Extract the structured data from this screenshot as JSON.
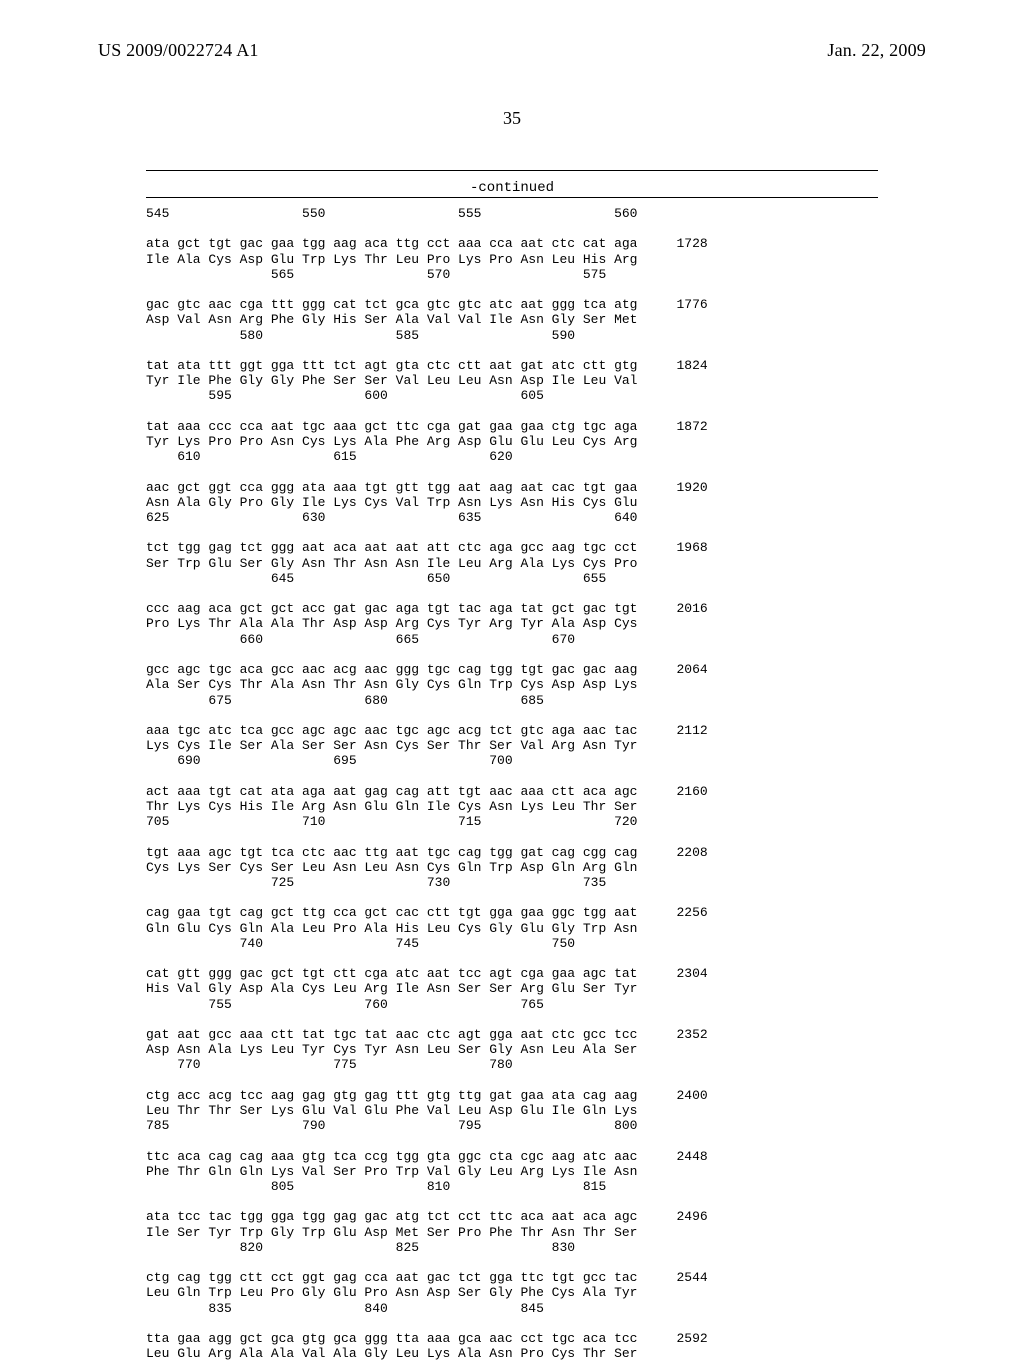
{
  "header": {
    "left": "US 2009/0022724 A1",
    "right": "Jan. 22, 2009"
  },
  "page_number": "35",
  "continued_label": "-continued",
  "sequence_text": "545                 550                 555                 560\n\nata gct tgt gac gaa tgg aag aca ttg cct aaa cca aat ctc cat aga     1728\nIle Ala Cys Asp Glu Trp Lys Thr Leu Pro Lys Pro Asn Leu His Arg\n                565                 570                 575\n\ngac gtc aac cga ttt ggg cat tct gca gtc gtc atc aat ggg tca atg     1776\nAsp Val Asn Arg Phe Gly His Ser Ala Val Val Ile Asn Gly Ser Met\n            580                 585                 590\n\ntat ata ttt ggt gga ttt tct agt gta ctc ctt aat gat atc ctt gtg     1824\nTyr Ile Phe Gly Gly Phe Ser Ser Val Leu Leu Asn Asp Ile Leu Val\n        595                 600                 605\n\ntat aaa ccc cca aat tgc aaa gct ttc cga gat gaa gaa ctg tgc aga     1872\nTyr Lys Pro Pro Asn Cys Lys Ala Phe Arg Asp Glu Glu Leu Cys Arg\n    610                 615                 620\n\naac gct ggt cca ggg ata aaa tgt gtt tgg aat aag aat cac tgt gaa     1920\nAsn Ala Gly Pro Gly Ile Lys Cys Val Trp Asn Lys Asn His Cys Glu\n625                 630                 635                 640\n\ntct tgg gag tct ggg aat aca aat aat att ctc aga gcc aag tgc cct     1968\nSer Trp Glu Ser Gly Asn Thr Asn Asn Ile Leu Arg Ala Lys Cys Pro\n                645                 650                 655\n\nccc aag aca gct gct acc gat gac aga tgt tac aga tat gct gac tgt     2016\nPro Lys Thr Ala Ala Thr Asp Asp Arg Cys Tyr Arg Tyr Ala Asp Cys\n            660                 665                 670\n\ngcc agc tgc aca gcc aac acg aac ggg tgc cag tgg tgt gac gac aag     2064\nAla Ser Cys Thr Ala Asn Thr Asn Gly Cys Gln Trp Cys Asp Asp Lys\n        675                 680                 685\n\naaa tgc atc tca gcc agc agc aac tgc agc acg tct gtc aga aac tac     2112\nLys Cys Ile Ser Ala Ser Ser Asn Cys Ser Thr Ser Val Arg Asn Tyr\n    690                 695                 700\n\nact aaa tgt cat ata aga aat gag cag att tgt aac aaa ctt aca agc     2160\nThr Lys Cys His Ile Arg Asn Glu Gln Ile Cys Asn Lys Leu Thr Ser\n705                 710                 715                 720\n\ntgt aaa agc tgt tca ctc aac ttg aat tgc cag tgg gat cag cgg cag     2208\nCys Lys Ser Cys Ser Leu Asn Leu Asn Cys Gln Trp Asp Gln Arg Gln\n                725                 730                 735\n\ncag gaa tgt cag gct ttg cca gct cac ctt tgt gga gaa ggc tgg aat     2256\nGln Glu Cys Gln Ala Leu Pro Ala His Leu Cys Gly Glu Gly Trp Asn\n            740                 745                 750\n\ncat gtt ggg gac gct tgt ctt cga atc aat tcc agt cga gaa agc tat     2304\nHis Val Gly Asp Ala Cys Leu Arg Ile Asn Ser Ser Arg Glu Ser Tyr\n        755                 760                 765\n\ngat aat gcc aaa ctt tat tgc tat aac ctc agt gga aat ctc gcc tcc     2352\nAsp Asn Ala Lys Leu Tyr Cys Tyr Asn Leu Ser Gly Asn Leu Ala Ser\n    770                 775                 780\n\nctg acc acg tcc aag gag gtg gag ttt gtg ttg gat gaa ata cag aag     2400\nLeu Thr Thr Ser Lys Glu Val Glu Phe Val Leu Asp Glu Ile Gln Lys\n785                 790                 795                 800\n\nttc aca cag cag aaa gtg tca ccg tgg gta ggc cta cgc aag atc aac     2448\nPhe Thr Gln Gln Lys Val Ser Pro Trp Val Gly Leu Arg Lys Ile Asn\n                805                 810                 815\n\nata tcc tac tgg gga tgg gag gac atg tct cct ttc aca aat aca agc     2496\nIle Ser Tyr Trp Gly Trp Glu Asp Met Ser Pro Phe Thr Asn Thr Ser\n            820                 825                 830\n\nctg cag tgg ctt cct ggt gag cca aat gac tct gga ttc tgt gcc tac     2544\nLeu Gln Trp Leu Pro Gly Glu Pro Asn Asp Ser Gly Phe Cys Ala Tyr\n        835                 840                 845\n\ntta gaa agg gct gca gtg gca ggg tta aaa gca aac cct tgc aca tcc     2592\nLeu Glu Arg Ala Ala Val Ala Gly Leu Lys Ala Asn Pro Cys Thr Ser"
}
